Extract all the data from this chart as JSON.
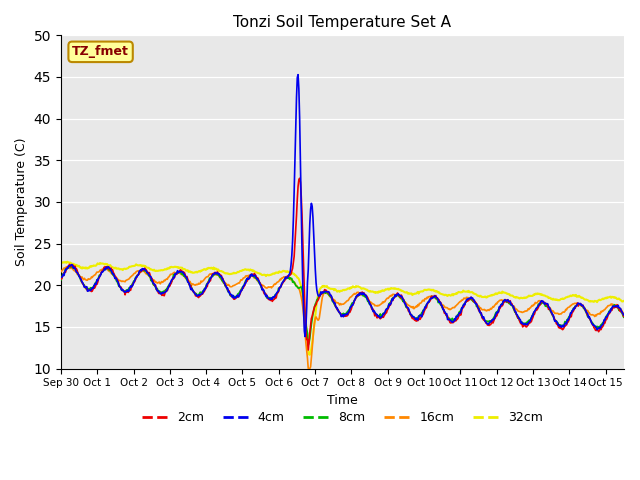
{
  "title": "Tonzi Soil Temperature Set A",
  "xlabel": "Time",
  "ylabel": "Soil Temperature (C)",
  "ylim": [
    10,
    50
  ],
  "yticks": [
    10,
    15,
    20,
    25,
    30,
    35,
    40,
    45,
    50
  ],
  "legend_label": "TZ_fmet",
  "legend_box_color": "#ffff99",
  "legend_box_edge": "#bb8800",
  "legend_text_color": "#880000",
  "bg_color": "#e8e8e8",
  "series_colors": {
    "2cm": "#ee0000",
    "4cm": "#0000ee",
    "8cm": "#00bb00",
    "16cm": "#ff8800",
    "32cm": "#eeee00"
  },
  "series_labels": [
    "2cm",
    "4cm",
    "8cm",
    "16cm",
    "32cm"
  ],
  "n_points": 720,
  "xlim": [
    0,
    15.5
  ],
  "xtick_positions": [
    0,
    1,
    2,
    3,
    4,
    5,
    6,
    7,
    8,
    9,
    10,
    11,
    12,
    13,
    14,
    15
  ],
  "xtick_labels": [
    "Sep 30",
    "Oct 1",
    "Oct 2",
    "Oct 3",
    "Oct 4",
    "Oct 5",
    "Oct 6",
    "Oct 7",
    "Oct 8",
    "Oct 9",
    "Oct 10",
    "Oct 11",
    "Oct 12",
    "Oct 13",
    "Oct 14",
    "Oct 15"
  ],
  "figsize": [
    6.4,
    4.8
  ],
  "dpi": 100
}
